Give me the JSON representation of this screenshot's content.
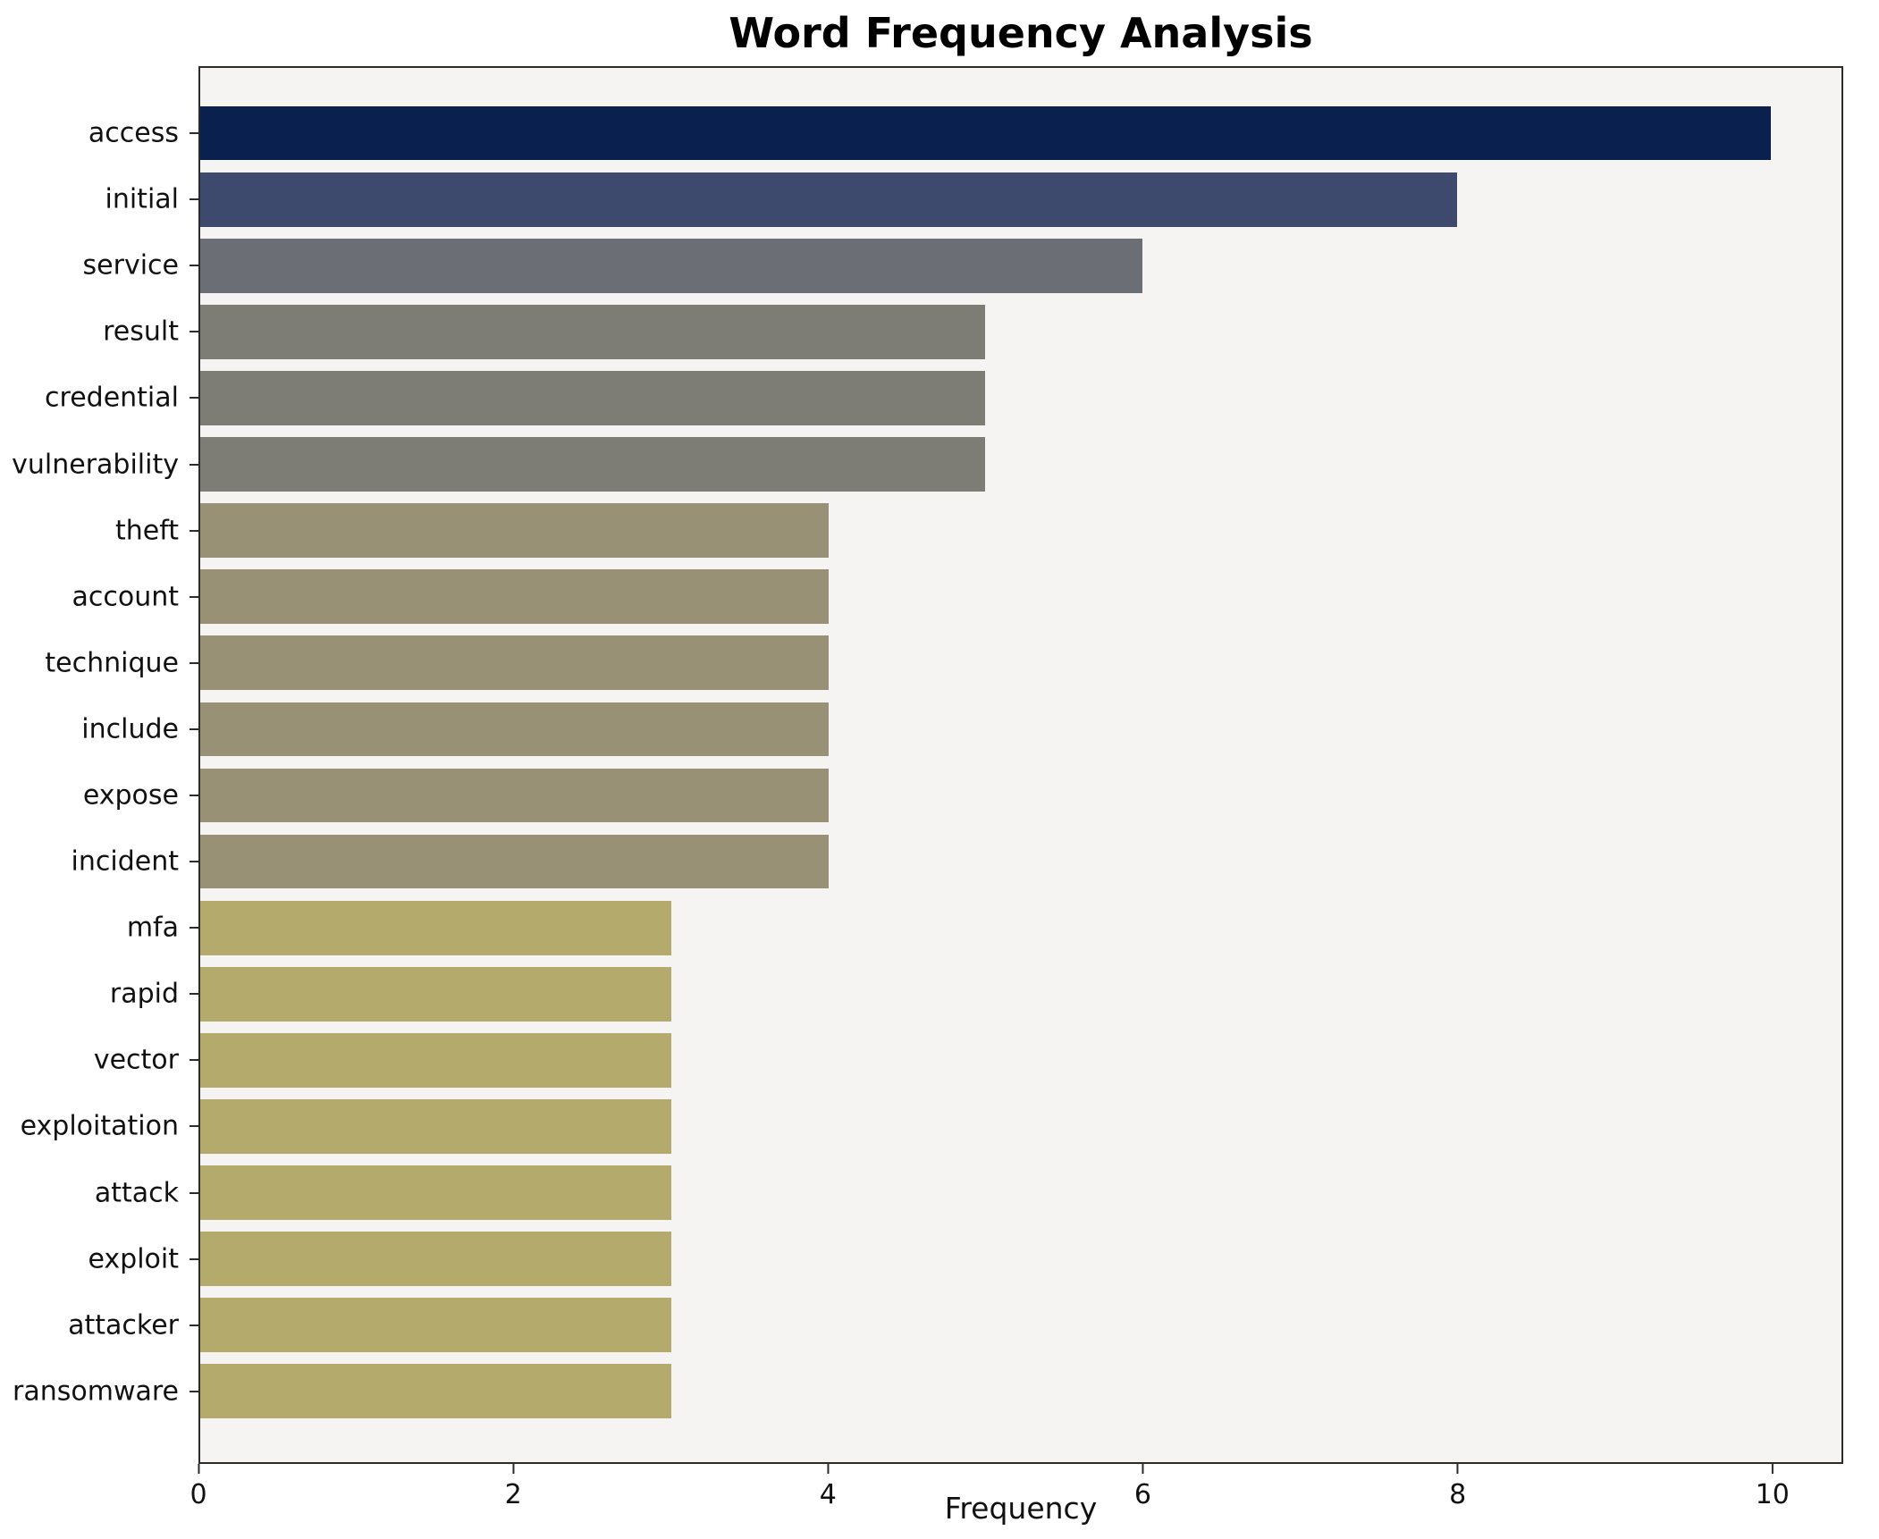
{
  "chart_data": {
    "type": "bar",
    "orientation": "horizontal",
    "title": "Word Frequency Analysis",
    "xlabel": "Frequency",
    "ylabel": "",
    "categories": [
      "access",
      "initial",
      "service",
      "result",
      "credential",
      "vulnerability",
      "theft",
      "account",
      "technique",
      "include",
      "expose",
      "incident",
      "mfa",
      "rapid",
      "vector",
      "exploitation",
      "attack",
      "exploit",
      "attacker",
      "ransomware"
    ],
    "values": [
      10,
      8,
      6,
      5,
      5,
      5,
      4,
      4,
      4,
      4,
      4,
      4,
      3,
      3,
      3,
      3,
      3,
      3,
      3,
      3
    ],
    "bar_colors": [
      "#0a2150",
      "#3d4a6e",
      "#6b6e74",
      "#7e7d75",
      "#7e7d75",
      "#7e7d75",
      "#989175",
      "#989175",
      "#989175",
      "#989175",
      "#989175",
      "#989175",
      "#b4aa6c",
      "#b4aa6c",
      "#b4aa6c",
      "#b4aa6c",
      "#b4aa6c",
      "#b4aa6c",
      "#b4aa6c",
      "#b4aa6c"
    ],
    "xlim": [
      0,
      10.45
    ],
    "xticks": [
      0,
      2,
      4,
      6,
      8,
      10
    ],
    "grid": false,
    "legend": "none",
    "plot_background": "#f5f4f2"
  }
}
